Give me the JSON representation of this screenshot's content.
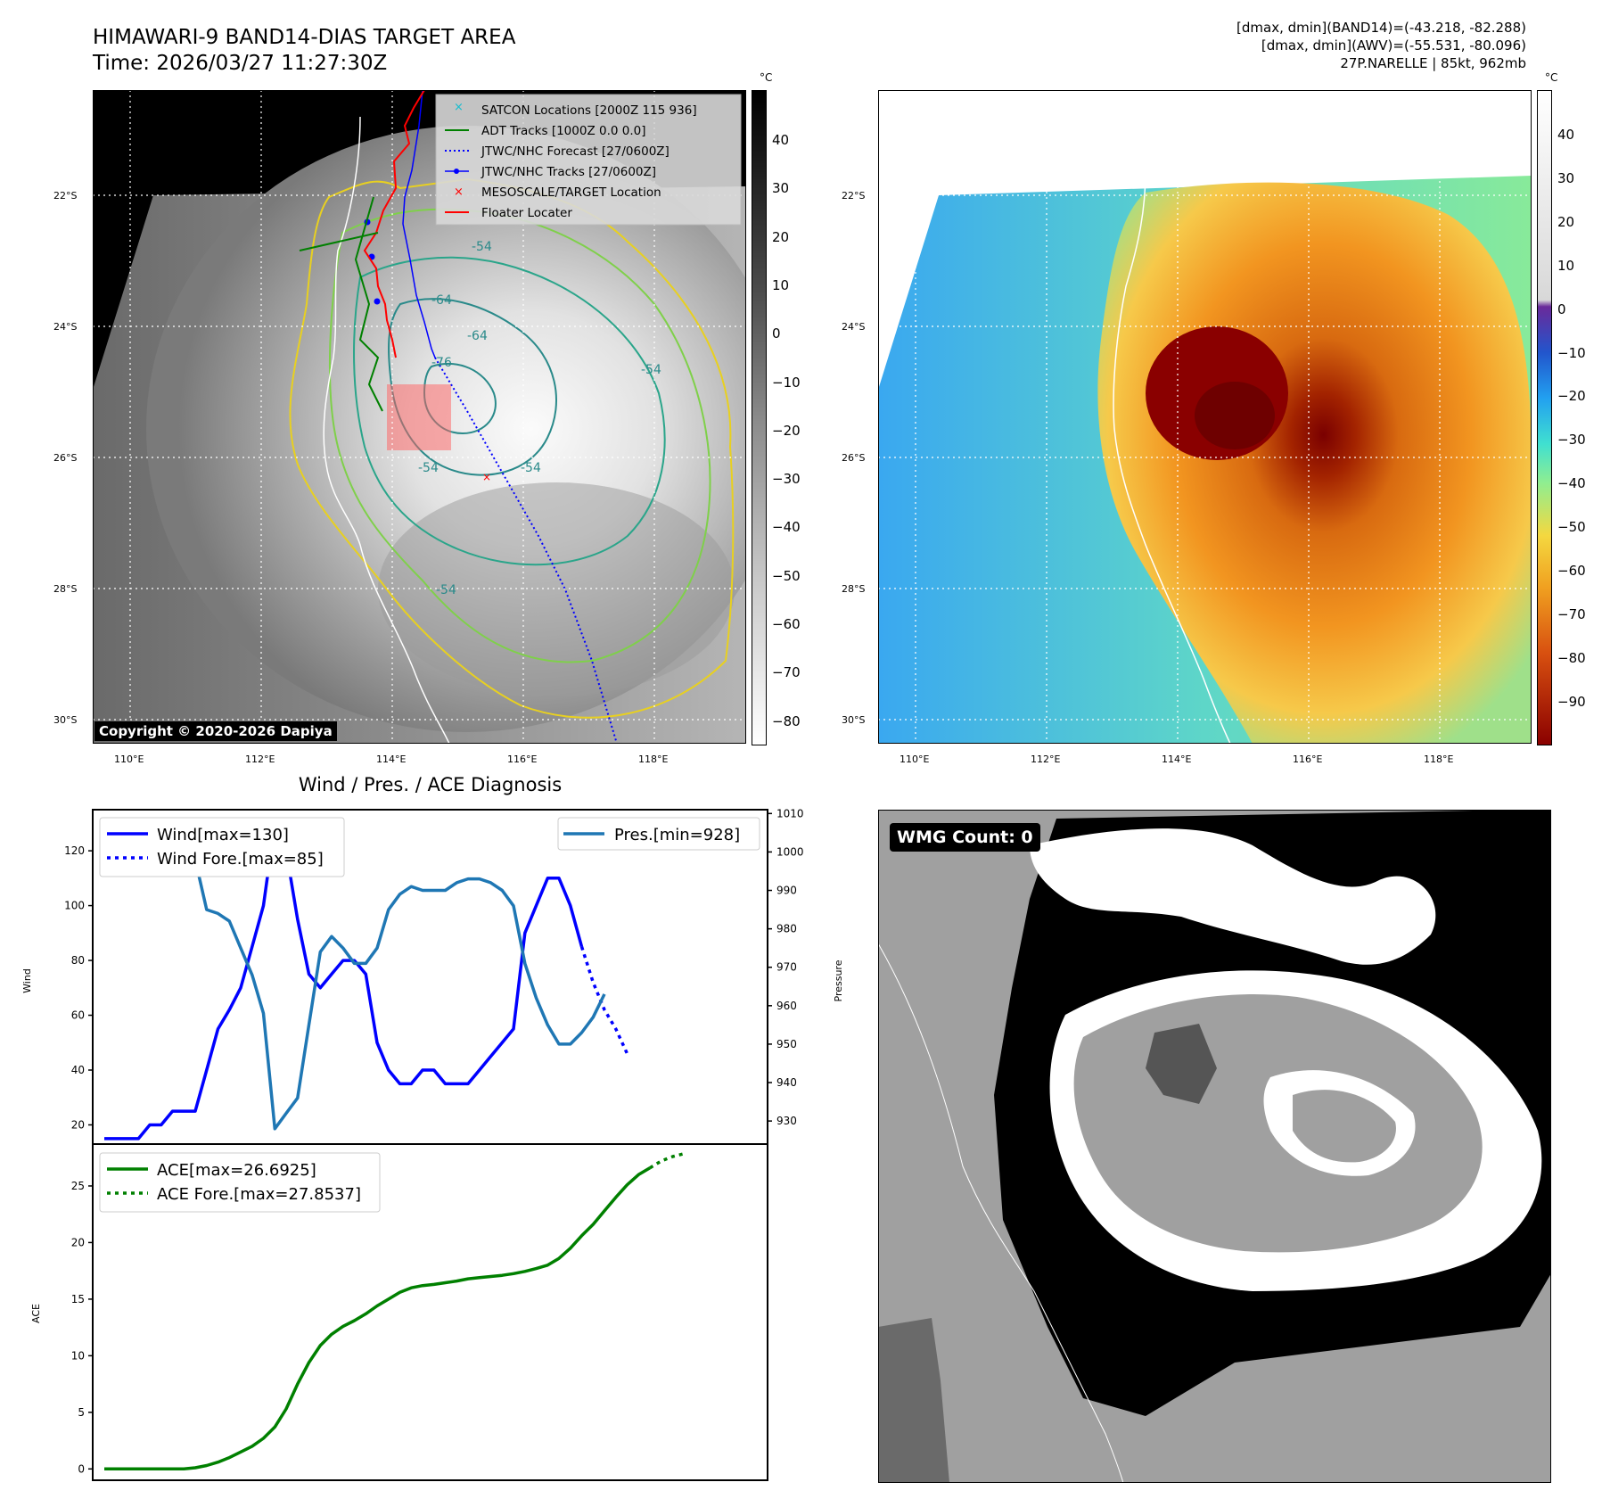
{
  "header": {
    "title_line1": "HIMAWARI-9 BAND14-DIAS TARGET AREA",
    "title_line2": "Time: 2026/03/27 11:27:30Z",
    "info_line1": "[dmax, dmin](BAND14)=(-43.218, -82.288)",
    "info_line2": "[dmax, dmin](AWV)=(-55.531, -80.096)",
    "info_line3": "27P.NARELLE | 85kt, 962mb"
  },
  "map_ir": {
    "colorbar_unit": "°C",
    "colorbar_ticks": [
      "40",
      "30",
      "20",
      "10",
      "0",
      "−10",
      "−20",
      "−30",
      "−40",
      "−50",
      "−60",
      "−70",
      "−80"
    ],
    "lat_labels": [
      "22°S",
      "24°S",
      "26°S",
      "28°S",
      "30°S"
    ],
    "lon_labels": [
      "110°E",
      "112°E",
      "114°E",
      "116°E",
      "118°E"
    ],
    "copyright": "Copyright © 2020-2026 Dapiya",
    "contour_labels": [
      "-54",
      "-64",
      "-64",
      "-76",
      "-54",
      "-54",
      "-54",
      "-54"
    ],
    "legend": [
      {
        "label": "SATCON Locations [2000Z 115 936]",
        "color": "#17becf"
      },
      {
        "label": "ADT Tracks [1000Z 0.0 0.0]",
        "color": "#008000"
      },
      {
        "label": "JTWC/NHC Forecast [27/0600Z]",
        "color": "#0000ff"
      },
      {
        "label": "JTWC/NHC Tracks [27/0600Z]",
        "color": "#0000ff"
      },
      {
        "label": "MESOSCALE/TARGET Location",
        "color": "#ff0000"
      },
      {
        "label": "Floater Locater",
        "color": "#ff0000"
      }
    ]
  },
  "map_awv": {
    "colorbar_unit": "°C",
    "colorbar_ticks": [
      "40",
      "30",
      "20",
      "10",
      "0",
      "−10",
      "−20",
      "−30",
      "−40",
      "−50",
      "−60",
      "−70",
      "−80",
      "−90"
    ],
    "lat_labels": [
      "22°S",
      "24°S",
      "26°S",
      "28°S",
      "30°S"
    ],
    "lon_labels": [
      "110°E",
      "112°E",
      "114°E",
      "116°E",
      "118°E"
    ]
  },
  "wmg": {
    "label": "WMG Count: 0"
  },
  "chart_data": [
    {
      "type": "line",
      "title": "Wind / Pres. / ACE Diagnosis",
      "ylabel": "Wind",
      "y2label": "Pressure",
      "ylim": [
        13,
        135
      ],
      "y2lim": [
        924,
        1011
      ],
      "yticks": [
        20,
        40,
        60,
        80,
        100,
        120
      ],
      "y2ticks": [
        930,
        940,
        950,
        960,
        970,
        980,
        990,
        1000,
        1010
      ],
      "series": [
        {
          "name": "Wind[max=130]",
          "color": "#0000ff",
          "style": "solid",
          "values": [
            15,
            15,
            15,
            15,
            20,
            20,
            25,
            25,
            25,
            40,
            55,
            62,
            70,
            85,
            100,
            130,
            120,
            95,
            75,
            70,
            75,
            80,
            80,
            75,
            50,
            40,
            35,
            35,
            40,
            40,
            35,
            35,
            35,
            40,
            45,
            50,
            55,
            90,
            100,
            110,
            110,
            100,
            85
          ]
        },
        {
          "name": "Wind Fore.[max=85]",
          "color": "#0000ff",
          "style": "dotted",
          "x_start": 42,
          "values": [
            85,
            72,
            62,
            55,
            46
          ]
        },
        {
          "name": "Pres.[min=928]",
          "color": "#1f77b4",
          "style": "solid",
          "axis": "right",
          "values": [
            1008,
            1008,
            1002,
            1003,
            1002,
            1001,
            1001,
            1001,
            998,
            985,
            984,
            982,
            975,
            968,
            958,
            928,
            932,
            936,
            955,
            974,
            978,
            975,
            971,
            971,
            975,
            985,
            989,
            991,
            990,
            990,
            990,
            992,
            993,
            993,
            992,
            990,
            986,
            971,
            962,
            955,
            950,
            950,
            953,
            957,
            963
          ]
        }
      ]
    },
    {
      "type": "line",
      "ylabel": "ACE",
      "ylim": [
        -1,
        28.7
      ],
      "yticks": [
        0,
        5,
        10,
        15,
        20,
        25
      ],
      "series": [
        {
          "name": "ACE[max=26.6925]",
          "color": "#008000",
          "style": "solid",
          "values": [
            0,
            0,
            0,
            0,
            0,
            0,
            0,
            0,
            0.1,
            0.3,
            0.6,
            1.0,
            1.5,
            2.0,
            2.7,
            3.7,
            5.3,
            7.5,
            9.4,
            10.9,
            11.9,
            12.6,
            13.1,
            13.7,
            14.4,
            15.0,
            15.6,
            16.0,
            16.2,
            16.3,
            16.45,
            16.6,
            16.8,
            16.9,
            17.0,
            17.1,
            17.25,
            17.45,
            17.7,
            18.0,
            18.6,
            19.5,
            20.6,
            21.6,
            22.8,
            24.0,
            25.1,
            26.0,
            26.6
          ]
        },
        {
          "name": "ACE Fore.[max=27.8537]",
          "color": "#008000",
          "style": "dotted",
          "x_start": 48,
          "values": [
            26.6,
            27.2,
            27.6,
            27.85
          ]
        }
      ]
    }
  ]
}
